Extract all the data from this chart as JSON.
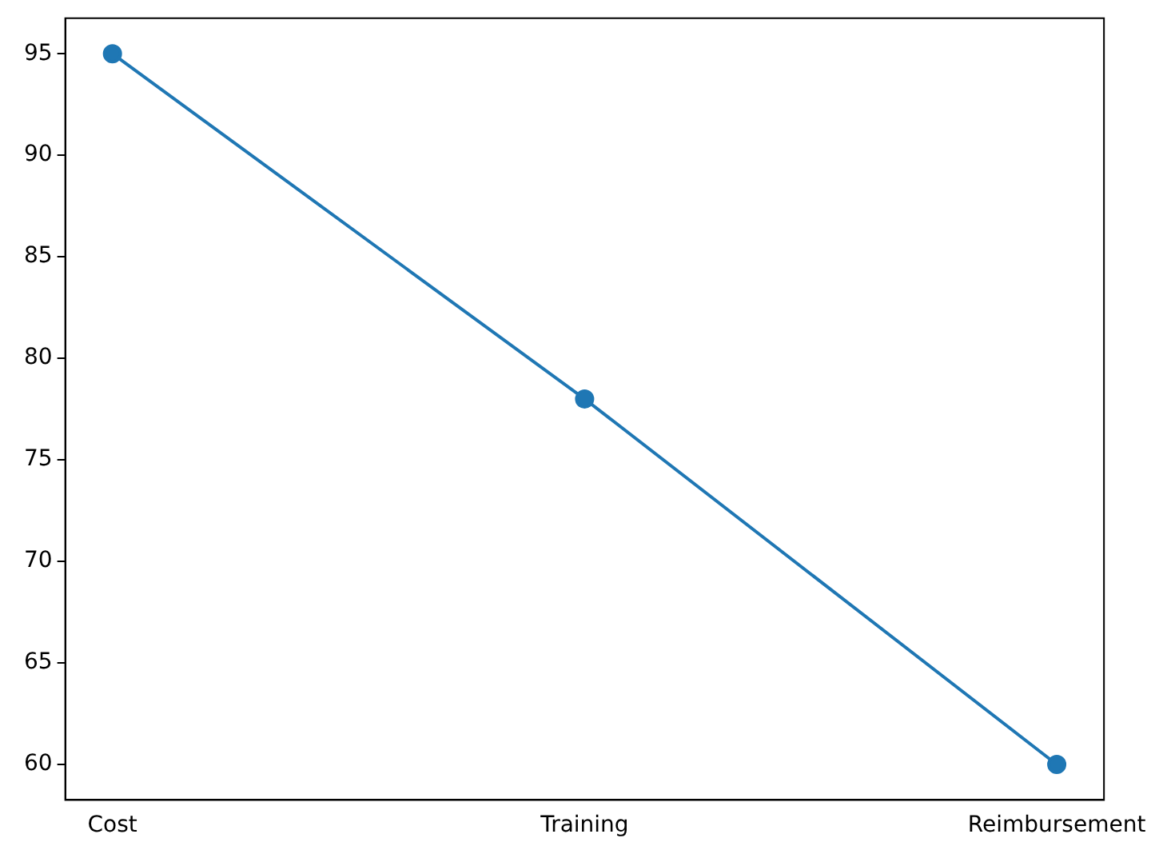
{
  "chart_data": {
    "type": "line",
    "categories": [
      "Cost",
      "Training",
      "Reimbursement"
    ],
    "series": [
      {
        "color": "#1f77b4",
        "values": [
          95,
          78,
          60
        ]
      }
    ],
    "ylim": [
      58.25,
      96.75
    ],
    "yticks": [
      60,
      65,
      70,
      75,
      80,
      85,
      90,
      95
    ],
    "grid": false,
    "legend": false,
    "marker": "circle",
    "line_style": "solid"
  }
}
